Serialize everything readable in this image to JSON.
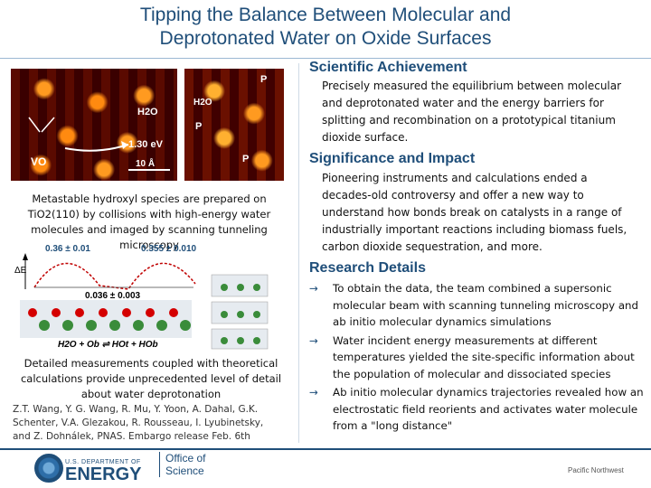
{
  "title_line1": "Tipping the Balance Between Molecular and",
  "title_line2": "Deprotonated Water on Oxide Surfaces",
  "achievement": {
    "heading": "Scientific Achievement",
    "text": "Precisely measured the equilibrium between molecular and deprotonated water and the energy barriers for splitting and recombination on a prototypical titanium dioxide surface."
  },
  "impact": {
    "heading": "Significance and Impact",
    "text": "Pioneering instruments and calculations ended a decades-old controversy and offer a new way to understand how bonds break on catalysts in a range of industrially important reactions including biomass fuels, carbon dioxide sequestration, and more."
  },
  "details": {
    "heading": "Research Details",
    "bullets": [
      "To obtain the data, the team combined a supersonic molecular beam with scanning tunneling microscopy and ab initio molecular dynamics simulations",
      "Water incident energy measurements at different temperatures yielded the site-specific information about the population of molecular and dissociated species",
      "Ab initio molecular dynamics trajectories revealed how an electrostatic field reorients and activates water molecule from a \"long distance\""
    ],
    "arrow": "→"
  },
  "stm_image": {
    "label_h2o_left": "H2O",
    "label_energy": "1.30 eV",
    "label_vo": "VO",
    "label_scale": "10 Å",
    "label_p1": "P",
    "label_h2o_right": "H2O",
    "label_p2": "P",
    "label_p3": "P"
  },
  "caption_stm": "Metastable hydroxyl species are prepared on TiO2(110) by collisions with high-energy water molecules and imaged by scanning tunneling microscopy",
  "energy_diagram": {
    "val_left": "0.36 ± 0.01",
    "val_right": "0.355 ± 0.010",
    "val_bottom": "0.036 ± 0.003",
    "axis_label": "ΔE",
    "reaction": "H2O + Ob ⇌ HOt + HOb"
  },
  "caption_calc": "Detailed measurements coupled with theoretical calculations provide unprecedented level of detail about water deprotonation",
  "citation": "Z.T. Wang, Y. G. Wang, R. Mu, Y. Yoon, A. Dahal, G.K. Schenter, V.A. Glezakou, R. Rousseau, I. Lyubinetsky, and Z. Dohnálek, PNAS. Embargo release Feb. 6th",
  "footer": {
    "doe_small": "U.S. DEPARTMENT OF",
    "doe_big": "ENERGY",
    "office1": "Office of",
    "office2": "Science",
    "pnnl": "Pacific Northwest"
  },
  "colors": {
    "title": "#1f4e79",
    "stm_bg": "#3a0000",
    "stm_spot": "#ff7a00"
  }
}
